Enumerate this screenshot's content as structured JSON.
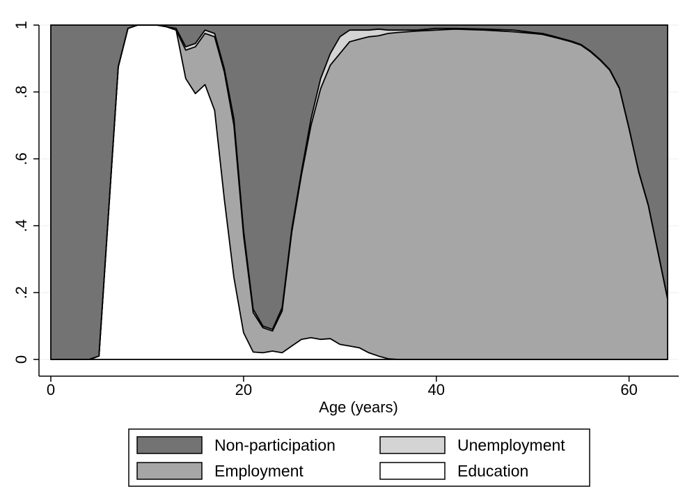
{
  "chart_data": {
    "type": "area",
    "stacked": true,
    "title": "",
    "xlabel": "Age (years)",
    "ylabel": "",
    "xlim": [
      0,
      64
    ],
    "ylim": [
      0,
      1
    ],
    "x_ticks": [
      0,
      20,
      40,
      60
    ],
    "y_ticks": [
      0,
      0.2,
      0.4,
      0.6,
      0.8,
      1
    ],
    "x_tick_labels": [
      "0",
      "20",
      "40",
      "60"
    ],
    "y_tick_labels": [
      "0",
      ".2",
      ".4",
      ".6",
      ".8",
      "1"
    ],
    "grid": true,
    "legend_position": "bottom",
    "x": [
      0,
      4,
      5,
      7,
      8,
      9,
      10,
      11,
      12,
      13,
      14,
      15,
      16,
      17,
      18,
      19,
      20,
      21,
      22,
      23,
      24,
      25,
      26,
      27,
      28,
      29,
      30,
      31,
      32,
      33,
      34,
      35,
      36,
      37,
      38,
      40,
      42,
      45,
      48,
      50,
      51,
      52,
      53,
      54,
      55,
      56,
      57,
      58,
      59,
      60,
      61,
      62,
      63,
      64
    ],
    "cumulative": {
      "education": [
        0,
        0,
        0.01,
        0.875,
        0.99,
        1,
        1,
        1,
        0.995,
        0.985,
        0.84,
        0.795,
        0.822,
        0.745,
        0.48,
        0.245,
        0.08,
        0.022,
        0.02,
        0.025,
        0.02,
        0.04,
        0.06,
        0.065,
        0.06,
        0.062,
        0.045,
        0.04,
        0.035,
        0.02,
        0.01,
        0.002,
        0,
        0,
        0,
        0,
        0,
        0,
        0,
        0,
        0,
        0,
        0,
        0,
        0,
        0,
        0,
        0,
        0,
        0,
        0,
        0,
        0,
        0
      ],
      "employment": [
        0,
        0,
        0.01,
        0.875,
        0.99,
        1,
        1,
        1,
        0.995,
        0.985,
        0.925,
        0.935,
        0.975,
        0.965,
        0.86,
        0.7,
        0.37,
        0.14,
        0.095,
        0.085,
        0.145,
        0.38,
        0.55,
        0.7,
        0.81,
        0.88,
        0.915,
        0.95,
        0.958,
        0.965,
        0.968,
        0.975,
        0.978,
        0.98,
        0.982,
        0.985,
        0.988,
        0.985,
        0.98,
        0.975,
        0.972,
        0.965,
        0.958,
        0.95,
        0.94,
        0.92,
        0.895,
        0.865,
        0.81,
        0.69,
        0.56,
        0.46,
        0.32,
        0.18
      ],
      "unemployment": [
        0,
        0,
        0.01,
        0.875,
        0.99,
        1,
        1,
        1,
        0.995,
        0.99,
        0.935,
        0.945,
        0.985,
        0.975,
        0.87,
        0.72,
        0.385,
        0.15,
        0.1,
        0.09,
        0.155,
        0.39,
        0.56,
        0.72,
        0.84,
        0.915,
        0.965,
        0.985,
        0.985,
        0.985,
        0.988,
        0.985,
        0.985,
        0.985,
        0.985,
        0.99,
        0.99,
        0.988,
        0.985,
        0.978,
        0.975,
        0.968,
        0.96,
        0.952,
        0.942,
        0.922,
        0.897,
        0.867,
        0.812,
        0.692,
        0.562,
        0.462,
        0.322,
        0.182
      ]
    },
    "series": [
      {
        "name": "Non-participation",
        "color": "#737373"
      },
      {
        "name": "Unemployment",
        "color": "#d4d4d4"
      },
      {
        "name": "Employment",
        "color": "#a6a6a6"
      },
      {
        "name": "Education",
        "color": "#ffffff"
      }
    ]
  }
}
